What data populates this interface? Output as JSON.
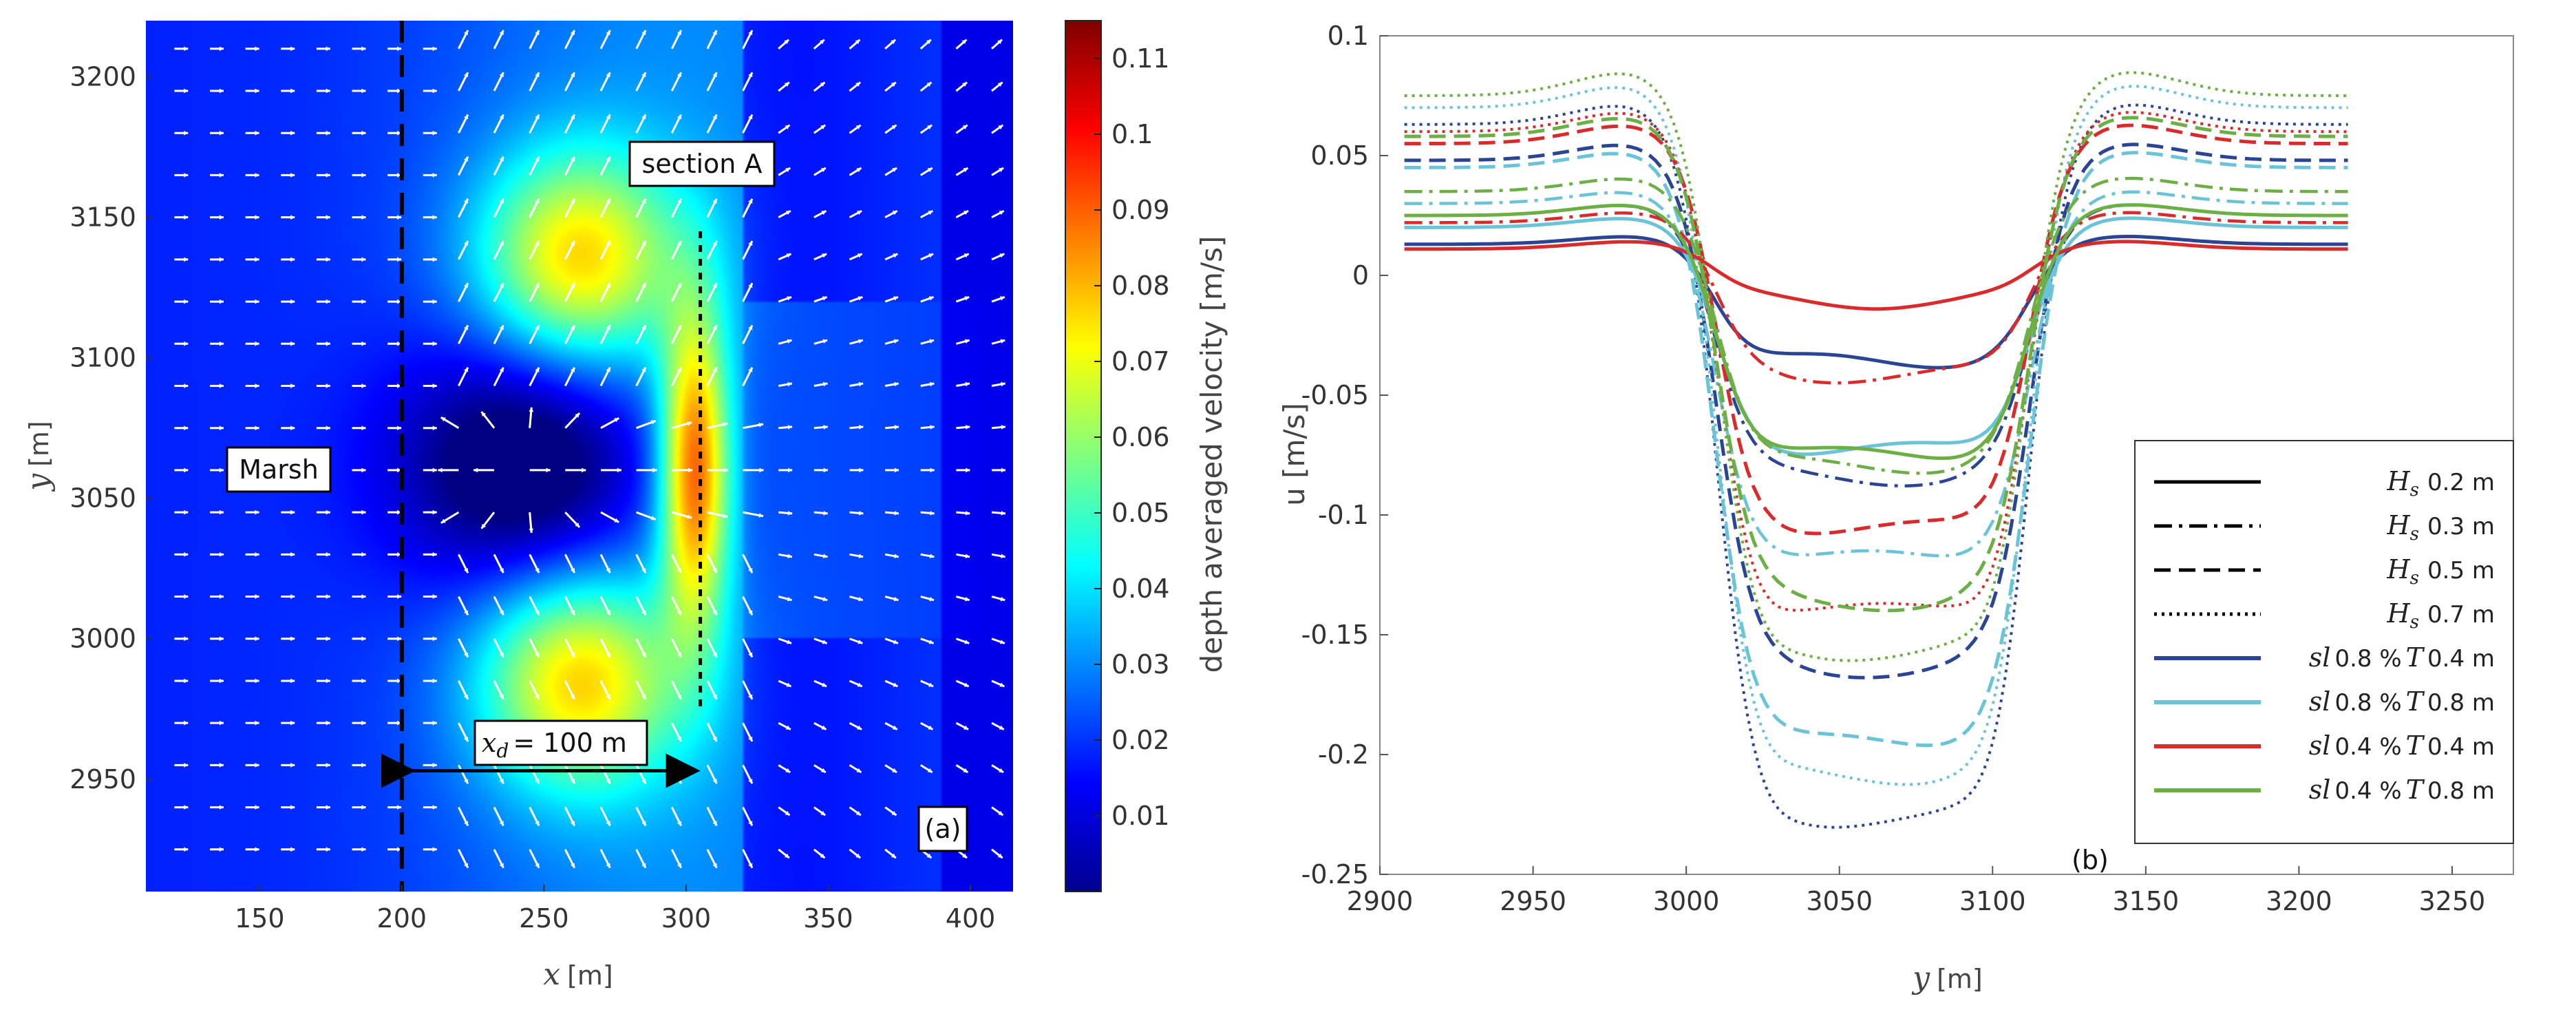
{
  "chart_data": [
    {
      "type": "heatmap",
      "panel_label": "(a)",
      "xlabel_var": "x",
      "xlabel_unit": "[m]",
      "ylabel_var": "y",
      "ylabel_unit": "[m]",
      "xlim": [
        110,
        415
      ],
      "ylim": [
        2910,
        3220
      ],
      "x_ticks": [
        150,
        200,
        250,
        300,
        350,
        400
      ],
      "y_ticks": [
        2950,
        3000,
        3050,
        3100,
        3150,
        3200
      ],
      "colorbar": {
        "label": "depth averaged velocity [m/s]",
        "range": [
          0,
          0.115
        ],
        "ticks": [
          "0.01",
          "0.02",
          "0.03",
          "0.04",
          "0.05",
          "0.06",
          "0.07",
          "0.08",
          "0.09",
          "0.1",
          "0.11"
        ]
      },
      "annotations": {
        "marsh": "Marsh",
        "section": "section A",
        "xd_var": "x",
        "xd_sub": "d",
        "xd_value": "= 100 m"
      },
      "marsh_edge_x": 200,
      "section_x": 305,
      "arrow_from_x": 200,
      "arrow_to_x": 305,
      "arrow_y": 2953,
      "section_y_range": [
        2975,
        3145
      ],
      "velocity_blobs": [
        {
          "x": 262,
          "y": 3135,
          "amp": 0.05
        },
        {
          "x": 262,
          "y": 2985,
          "amp": 0.05
        },
        {
          "x": 303,
          "y": 3060,
          "amp": 0.065
        },
        {
          "x": 245,
          "y": 3062,
          "amp": -0.035
        }
      ]
    },
    {
      "type": "line",
      "panel_label": "(b)",
      "xlabel_var": "y",
      "xlabel_unit": "[m]",
      "ylabel": "u  [m/s]",
      "xlim": [
        2900,
        3270
      ],
      "ylim": [
        -0.25,
        0.1
      ],
      "x_ticks": [
        2900,
        2950,
        3000,
        3050,
        3100,
        3150,
        3200,
        3250
      ],
      "y_ticks": [
        "0.1",
        "0.05",
        "0",
        "-0.05",
        "-0.1",
        "-0.15",
        "-0.2",
        "-0.25"
      ],
      "legend": {
        "placement": "lower-right",
        "wave_heights": [
          {
            "var": "H",
            "sub": "s",
            "value": "0.2 m",
            "dash": "solid"
          },
          {
            "var": "H",
            "sub": "s",
            "value": "0.3 m",
            "dash": "dashdot"
          },
          {
            "var": "H",
            "sub": "s",
            "value": "0.5 m",
            "dash": "dashed"
          },
          {
            "var": "H",
            "sub": "s",
            "value": "0.7 m",
            "dash": "dotted"
          }
        ],
        "scenarios": [
          {
            "sl": "sl",
            "slope": "0.8 %",
            "T": "T",
            "t": "0.4 m",
            "color": "#2b4594"
          },
          {
            "sl": "sl",
            "slope": "0.8 %",
            "T": "T",
            "t": "0.8 m",
            "color": "#6ac3d6"
          },
          {
            "sl": "sl",
            "slope": "0.4 %",
            "T": "T",
            "t": "0.4 m",
            "color": "#d92b2b"
          },
          {
            "sl": "sl",
            "slope": "0.4 %",
            "T": "T",
            "t": "0.8 m",
            "color": "#6cb045"
          }
        ]
      },
      "series": [
        {
          "name": "sl 0.8 % T 0.4 m, Hs 0.2 m",
          "color": "#2b4594",
          "dash": "solid",
          "outer": 0.013,
          "center": -0.036
        },
        {
          "name": "sl 0.8 % T 0.4 m, Hs 0.3 m",
          "color": "#2b4594",
          "dash": "dashdot",
          "outer": 0.025,
          "center": -0.085
        },
        {
          "name": "sl 0.8 % T 0.4 m, Hs 0.5 m",
          "color": "#2b4594",
          "dash": "dashed",
          "outer": 0.048,
          "center": -0.165
        },
        {
          "name": "sl 0.8 % T 0.4 m, Hs 0.7 m",
          "color": "#2b4594",
          "dash": "dotted",
          "outer": 0.063,
          "center": -0.228
        },
        {
          "name": "sl 0.8 % T 0.8 m, Hs 0.2 m",
          "color": "#6ac3d6",
          "dash": "solid",
          "outer": 0.02,
          "center": -0.073
        },
        {
          "name": "sl 0.8 % T 0.8 m, Hs 0.3 m",
          "color": "#6ac3d6",
          "dash": "dashdot",
          "outer": 0.03,
          "center": -0.118
        },
        {
          "name": "sl 0.8 % T 0.8 m, Hs 0.5 m",
          "color": "#6ac3d6",
          "dash": "dashed",
          "outer": 0.045,
          "center": -0.195
        },
        {
          "name": "sl 0.8 % T 0.8 m, Hs 0.7 m",
          "color": "#6ac3d6",
          "dash": "dotted",
          "outer": 0.07,
          "center": -0.21
        },
        {
          "name": "sl 0.4 % T 0.4 m, Hs 0.2 m",
          "color": "#d92b2b",
          "dash": "solid",
          "outer": 0.011,
          "center": -0.011
        },
        {
          "name": "sl 0.4 % T 0.4 m, Hs 0.3 m",
          "color": "#d92b2b",
          "dash": "dashdot",
          "outer": 0.022,
          "center": -0.042
        },
        {
          "name": "sl 0.4 % T 0.4 m, Hs 0.5 m",
          "color": "#d92b2b",
          "dash": "dashed",
          "outer": 0.055,
          "center": -0.106
        },
        {
          "name": "sl 0.4 % T 0.4 m, Hs 0.7 m",
          "color": "#d92b2b",
          "dash": "dotted",
          "outer": 0.06,
          "center": -0.14
        },
        {
          "name": "sl 0.4 % T 0.8 m, Hs 0.2 m",
          "color": "#6cb045",
          "dash": "solid",
          "outer": 0.025,
          "center": -0.075
        },
        {
          "name": "sl 0.4 % T 0.8 m, Hs 0.3 m",
          "color": "#6cb045",
          "dash": "dashdot",
          "outer": 0.035,
          "center": -0.08
        },
        {
          "name": "sl 0.4 % T 0.8 m, Hs 0.5 m",
          "color": "#6cb045",
          "dash": "dashed",
          "outer": 0.058,
          "center": -0.137
        },
        {
          "name": "sl 0.4 % T 0.8 m, Hs 0.7 m",
          "color": "#6cb045",
          "dash": "dotted",
          "outer": 0.075,
          "center": -0.158
        }
      ]
    }
  ]
}
